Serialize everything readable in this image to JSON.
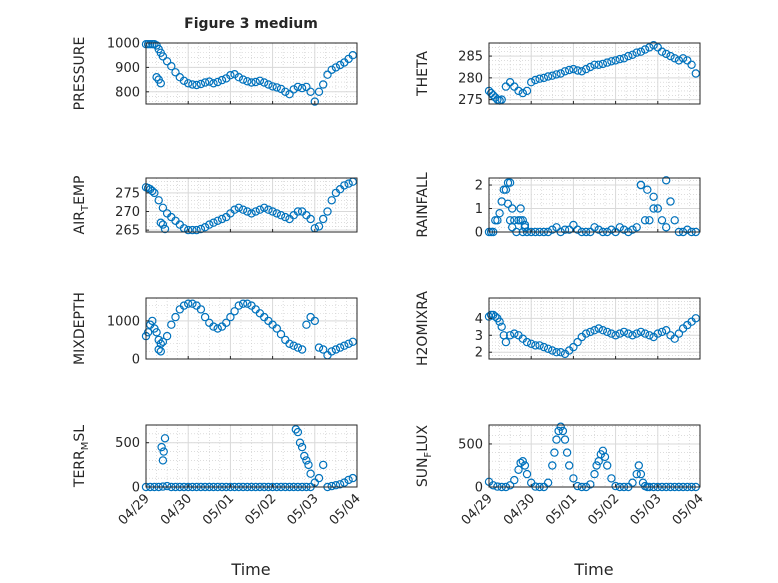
{
  "figure": {
    "title": "Figure 3 medium",
    "colors": {
      "series": "#0072bd",
      "axis": "#262626",
      "grid": "#d9d9d9"
    }
  },
  "chart_data": [
    {
      "type": "scatter",
      "ylabel": "PRESSURE",
      "ylim": [
        750,
        1000
      ],
      "yticks": [
        800,
        900,
        1000
      ],
      "xlim": [
        0,
        5
      ],
      "grid": true,
      "x": [
        0.0,
        0.05,
        0.1,
        0.15,
        0.2,
        0.25,
        0.3,
        0.35,
        0.4,
        0.5,
        0.6,
        0.7,
        0.8,
        0.9,
        1.0,
        1.1,
        1.2,
        1.3,
        1.4,
        1.5,
        1.6,
        1.7,
        1.8,
        1.9,
        2.0,
        2.1,
        2.2,
        2.3,
        2.4,
        2.5,
        2.6,
        2.7,
        2.8,
        2.9,
        3.0,
        3.1,
        3.2,
        3.3,
        3.4,
        3.5,
        3.6,
        3.7,
        3.8,
        3.9,
        4.0,
        4.1,
        4.2,
        4.3,
        4.4,
        4.5,
        4.6,
        4.7,
        4.8,
        4.9,
        0.25,
        0.3,
        0.35
      ],
      "y": [
        995,
        995,
        995,
        995,
        995,
        990,
        975,
        960,
        945,
        925,
        905,
        880,
        860,
        845,
        835,
        830,
        828,
        832,
        838,
        842,
        835,
        840,
        848,
        855,
        868,
        872,
        860,
        850,
        843,
        838,
        840,
        845,
        838,
        830,
        822,
        818,
        812,
        800,
        790,
        810,
        820,
        815,
        820,
        800,
        760,
        800,
        830,
        870,
        890,
        900,
        910,
        920,
        935,
        950,
        860,
        850,
        835
      ]
    },
    {
      "type": "scatter",
      "ylabel": "THETA",
      "ylim": [
        274,
        288
      ],
      "yticks": [
        275,
        280,
        285
      ],
      "xlim": [
        0,
        5
      ],
      "grid": true,
      "x": [
        0.0,
        0.05,
        0.1,
        0.15,
        0.2,
        0.25,
        0.3,
        0.4,
        0.5,
        0.6,
        0.7,
        0.8,
        0.9,
        1.0,
        1.1,
        1.2,
        1.3,
        1.4,
        1.5,
        1.6,
        1.7,
        1.8,
        1.9,
        2.0,
        2.1,
        2.2,
        2.3,
        2.4,
        2.5,
        2.6,
        2.7,
        2.8,
        2.9,
        3.0,
        3.1,
        3.2,
        3.3,
        3.4,
        3.5,
        3.6,
        3.7,
        3.8,
        3.9,
        4.0,
        4.1,
        4.2,
        4.3,
        4.4,
        4.5,
        4.6,
        4.7,
        4.8,
        4.9
      ],
      "y": [
        277,
        276.5,
        276,
        275.5,
        275,
        274.8,
        275,
        278,
        279,
        278,
        277,
        276.5,
        277,
        279,
        279.5,
        279.8,
        280,
        280.3,
        280.5,
        280.8,
        281,
        281.5,
        281.8,
        282,
        281.7,
        281.5,
        282,
        282.5,
        283,
        283,
        283.2,
        283.5,
        283.8,
        284,
        284.3,
        284.5,
        285,
        285.3,
        285.8,
        286,
        286.5,
        287,
        287.5,
        287,
        286,
        285.5,
        285,
        284.5,
        284,
        284.5,
        284,
        283,
        281
      ]
    },
    {
      "type": "scatter",
      "ylabel": "AIR_TEMP",
      "ylim": [
        264.5,
        279
      ],
      "yticks": [
        265,
        270,
        275
      ],
      "xlim": [
        0,
        5
      ],
      "grid": true,
      "x": [
        0.0,
        0.05,
        0.1,
        0.15,
        0.2,
        0.3,
        0.4,
        0.5,
        0.6,
        0.7,
        0.8,
        0.9,
        1.0,
        1.1,
        1.2,
        1.3,
        1.4,
        1.5,
        1.6,
        1.7,
        1.8,
        1.9,
        2.0,
        2.1,
        2.2,
        2.3,
        2.4,
        2.5,
        2.6,
        2.7,
        2.8,
        2.9,
        3.0,
        3.1,
        3.2,
        3.3,
        3.4,
        3.5,
        3.6,
        3.7,
        3.8,
        3.9,
        4.0,
        4.1,
        4.2,
        4.3,
        4.4,
        4.5,
        4.6,
        4.7,
        4.8,
        4.9,
        0.35,
        0.4,
        0.45
      ],
      "y": [
        276.5,
        276.3,
        276,
        275.5,
        275,
        273,
        271,
        269.5,
        268.5,
        267.5,
        266.5,
        265.5,
        265,
        265,
        265,
        265.3,
        265.8,
        266.5,
        267,
        267.5,
        268,
        268.5,
        269.5,
        270.5,
        271,
        270.5,
        270,
        269.5,
        270,
        270.5,
        271,
        270.5,
        270,
        269.5,
        269,
        268.5,
        268,
        269,
        270,
        270,
        269,
        268,
        265.5,
        266,
        268,
        270,
        273,
        275,
        276,
        277,
        277.5,
        278,
        267,
        266.5,
        265.3
      ]
    },
    {
      "type": "scatter",
      "ylabel": "RAINFALL",
      "ylim": [
        0,
        2.3
      ],
      "yticks": [
        0,
        1,
        2
      ],
      "xlim": [
        0,
        5
      ],
      "grid": true,
      "x": [
        0.0,
        0.05,
        0.1,
        0.15,
        0.2,
        0.25,
        0.3,
        0.35,
        0.4,
        0.45,
        0.5,
        0.55,
        0.6,
        0.65,
        0.7,
        0.75,
        0.8,
        0.85,
        0.9,
        1.0,
        1.1,
        1.2,
        1.3,
        1.4,
        1.5,
        1.6,
        1.7,
        1.8,
        1.9,
        2.0,
        2.1,
        2.2,
        2.3,
        2.4,
        2.5,
        2.6,
        2.7,
        2.8,
        2.9,
        3.0,
        3.1,
        3.2,
        3.3,
        3.4,
        3.5,
        3.6,
        3.7,
        3.8,
        3.9,
        4.0,
        4.1,
        4.2,
        4.3,
        4.4,
        4.5,
        4.6,
        4.7,
        4.8,
        4.9,
        0.45,
        0.5,
        0.55,
        0.75,
        0.8,
        0.85,
        3.6,
        3.75,
        3.9,
        4.2
      ],
      "y": [
        0,
        0,
        0,
        0.5,
        0.5,
        0.8,
        1.3,
        1.8,
        1.8,
        1.2,
        0.5,
        0.2,
        0.5,
        0,
        0.5,
        1.0,
        0,
        0.3,
        0,
        0,
        0,
        0,
        0,
        0,
        0.1,
        0.2,
        0,
        0.1,
        0.1,
        0.3,
        0.1,
        0,
        0,
        0,
        0.2,
        0.1,
        0,
        0,
        0.1,
        0,
        0.2,
        0.1,
        0,
        0.1,
        0.2,
        2.0,
        0.5,
        0.5,
        1.0,
        1.0,
        0.5,
        0.2,
        1.3,
        0.5,
        0,
        0,
        0.1,
        0,
        0,
        2.1,
        2.1,
        1.0,
        0.5,
        0.5,
        0.2,
        2.0,
        1.8,
        1.5,
        2.2
      ]
    },
    {
      "type": "scatter",
      "ylabel": "MIXDEPTH",
      "ylim": [
        0,
        1600
      ],
      "yticks": [
        0,
        1000
      ],
      "xlim": [
        0,
        5
      ],
      "grid": true,
      "x": [
        0.0,
        0.05,
        0.1,
        0.15,
        0.2,
        0.25,
        0.3,
        0.35,
        0.4,
        0.5,
        0.6,
        0.7,
        0.8,
        0.9,
        1.0,
        1.1,
        1.2,
        1.3,
        1.4,
        1.5,
        1.6,
        1.7,
        1.8,
        1.9,
        2.0,
        2.1,
        2.2,
        2.3,
        2.4,
        2.5,
        2.6,
        2.7,
        2.8,
        2.9,
        3.0,
        3.1,
        3.2,
        3.3,
        3.4,
        3.5,
        3.6,
        3.7,
        3.8,
        3.9,
        4.0,
        4.1,
        4.2,
        4.3,
        4.4,
        4.5,
        4.6,
        4.7,
        4.8,
        4.9,
        0.3,
        0.35
      ],
      "y": [
        600,
        700,
        900,
        1000,
        800,
        700,
        500,
        400,
        450,
        600,
        900,
        1100,
        1300,
        1400,
        1450,
        1450,
        1400,
        1300,
        1100,
        950,
        850,
        800,
        850,
        950,
        1100,
        1250,
        1400,
        1450,
        1450,
        1400,
        1300,
        1200,
        1100,
        1000,
        900,
        800,
        650,
        500,
        400,
        350,
        300,
        250,
        900,
        1100,
        1000,
        300,
        250,
        100,
        200,
        250,
        300,
        350,
        400,
        450,
        250,
        200
      ]
    },
    {
      "type": "scatter",
      "ylabel": "H2OMIXRA",
      "ylim": [
        1.6,
        5.2
      ],
      "yticks": [
        2,
        3,
        4
      ],
      "xlim": [
        0,
        5
      ],
      "grid": true,
      "x": [
        0.0,
        0.05,
        0.1,
        0.15,
        0.2,
        0.25,
        0.3,
        0.35,
        0.4,
        0.5,
        0.6,
        0.7,
        0.8,
        0.9,
        1.0,
        1.1,
        1.2,
        1.3,
        1.4,
        1.5,
        1.6,
        1.7,
        1.8,
        1.9,
        2.0,
        2.1,
        2.2,
        2.3,
        2.4,
        2.5,
        2.6,
        2.7,
        2.8,
        2.9,
        3.0,
        3.1,
        3.2,
        3.3,
        3.4,
        3.5,
        3.6,
        3.7,
        3.8,
        3.9,
        4.0,
        4.1,
        4.2,
        4.3,
        4.4,
        4.5,
        4.6,
        4.7,
        4.8,
        4.9
      ],
      "y": [
        4.1,
        4.2,
        4.2,
        4.1,
        4.0,
        3.8,
        3.5,
        3.0,
        2.6,
        3.0,
        3.1,
        3.0,
        2.8,
        2.6,
        2.5,
        2.4,
        2.4,
        2.3,
        2.2,
        2.1,
        2.0,
        2.0,
        1.9,
        2.1,
        2.3,
        2.6,
        2.9,
        3.1,
        3.2,
        3.3,
        3.4,
        3.3,
        3.2,
        3.1,
        3.0,
        3.1,
        3.2,
        3.1,
        3.0,
        3.1,
        3.2,
        3.1,
        3.0,
        2.9,
        3.1,
        3.2,
        3.3,
        3.0,
        2.8,
        3.1,
        3.4,
        3.6,
        3.8,
        4.0
      ]
    },
    {
      "type": "scatter",
      "ylabel": "TERR_MSL",
      "ylim": [
        0,
        700
      ],
      "yticks": [
        0,
        500
      ],
      "xlim": [
        0,
        5
      ],
      "grid": true,
      "x": [
        0.0,
        0.1,
        0.2,
        0.3,
        0.4,
        0.5,
        0.6,
        0.7,
        0.8,
        0.9,
        1.0,
        1.1,
        1.2,
        1.3,
        1.4,
        1.5,
        1.6,
        1.7,
        1.8,
        1.9,
        2.0,
        2.1,
        2.2,
        2.3,
        2.4,
        2.5,
        2.6,
        2.7,
        2.8,
        2.9,
        3.0,
        3.1,
        3.2,
        3.3,
        3.4,
        3.5,
        3.6,
        3.7,
        3.8,
        3.9,
        4.0,
        4.1,
        4.2,
        4.3,
        4.4,
        4.5,
        4.6,
        4.7,
        4.8,
        4.9,
        0.37,
        0.4,
        0.42,
        0.45,
        3.55,
        3.6,
        3.65,
        3.7,
        3.75,
        3.8,
        3.85,
        3.9
      ],
      "y": [
        0,
        0,
        0,
        0,
        5,
        10,
        0,
        0,
        0,
        0,
        0,
        0,
        0,
        0,
        0,
        0,
        0,
        0,
        0,
        0,
        0,
        0,
        0,
        0,
        0,
        0,
        0,
        0,
        0,
        0,
        0,
        0,
        0,
        0,
        0,
        0,
        0,
        0,
        0,
        0,
        50,
        100,
        250,
        0,
        10,
        20,
        30,
        50,
        80,
        100,
        450,
        300,
        400,
        550,
        650,
        620,
        500,
        450,
        350,
        300,
        250,
        150
      ]
    },
    {
      "type": "scatter",
      "ylabel": "SUN_FLUX",
      "ylim": [
        0,
        720
      ],
      "yticks": [
        0,
        500
      ],
      "xlim": [
        0,
        5
      ],
      "grid": true,
      "x": [
        0.0,
        0.1,
        0.2,
        0.3,
        0.4,
        0.5,
        0.6,
        0.7,
        0.75,
        0.8,
        0.85,
        0.9,
        1.0,
        1.1,
        1.2,
        1.3,
        1.4,
        1.5,
        1.55,
        1.6,
        1.65,
        1.7,
        1.75,
        1.8,
        1.85,
        1.9,
        2.0,
        2.1,
        2.2,
        2.3,
        2.4,
        2.5,
        2.55,
        2.6,
        2.65,
        2.7,
        2.75,
        2.8,
        2.9,
        3.0,
        3.1,
        3.2,
        3.3,
        3.4,
        3.5,
        3.55,
        3.6,
        3.65,
        3.7,
        3.75,
        3.8,
        3.9,
        4.0,
        4.1,
        4.2,
        4.3,
        4.4,
        4.5,
        4.6,
        4.7,
        4.8,
        4.9
      ],
      "y": [
        60,
        20,
        5,
        0,
        0,
        20,
        80,
        200,
        280,
        300,
        250,
        150,
        50,
        5,
        0,
        0,
        50,
        250,
        400,
        550,
        650,
        700,
        650,
        550,
        400,
        250,
        100,
        10,
        0,
        0,
        30,
        150,
        250,
        300,
        380,
        420,
        350,
        250,
        100,
        10,
        0,
        0,
        0,
        50,
        150,
        250,
        150,
        50,
        10,
        0,
        0,
        0,
        0,
        0,
        0,
        0,
        0,
        0,
        0,
        0,
        0,
        0
      ]
    }
  ],
  "xaxis": {
    "xlabel": "Time",
    "tick_labels": [
      "04/29",
      "04/30",
      "05/01",
      "05/02",
      "05/03",
      "05/04"
    ]
  }
}
